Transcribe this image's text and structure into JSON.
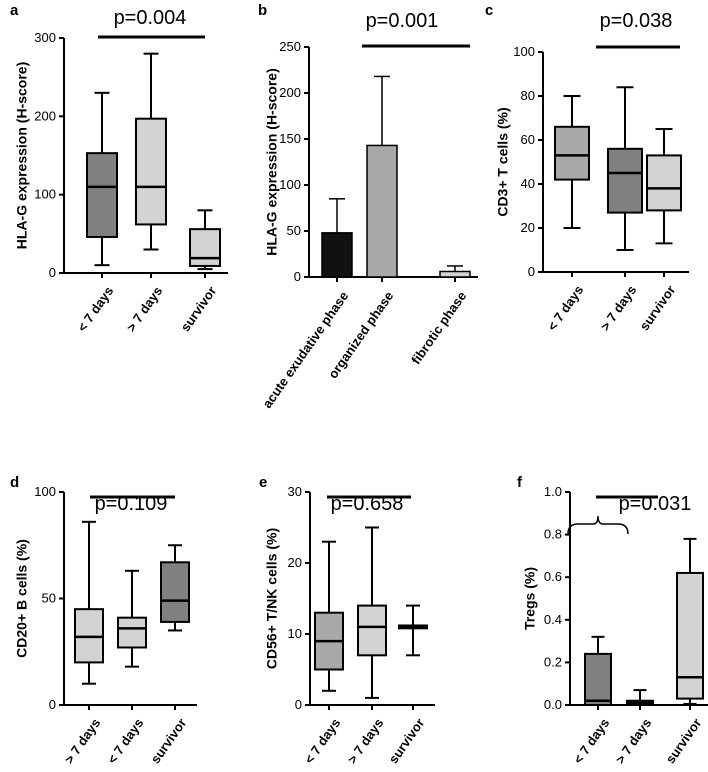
{
  "chart_data": [
    {
      "panel": "a",
      "type": "box",
      "pvalue": "p=0.004",
      "ylabel": "HLA-G expression (H-score)",
      "ylim": [
        0,
        300
      ],
      "yticks": [
        0,
        100,
        200,
        300
      ],
      "categories": [
        "< 7 days",
        "> 7 days",
        "survivor"
      ],
      "fills": [
        "#808080",
        "#d3d3d3",
        "#d3d3d3"
      ],
      "boxes": [
        {
          "min": 10,
          "q1": 46,
          "median": 110,
          "q3": 153,
          "max": 230
        },
        {
          "min": 30,
          "q1": 62,
          "median": 110,
          "q3": 197,
          "max": 280
        },
        {
          "min": 5,
          "q1": 9,
          "median": 19,
          "q3": 56,
          "max": 80
        }
      ],
      "bracket": [
        0,
        2
      ]
    },
    {
      "panel": "b",
      "type": "bar",
      "pvalue": "p=0.001",
      "ylabel": "HLA-G expression (H-score)",
      "ylim": [
        0,
        250
      ],
      "yticks": [
        0,
        50,
        100,
        150,
        200,
        250
      ],
      "categories": [
        "acute exudative phase",
        "organized phase",
        "fibrotic phase"
      ],
      "fills": [
        "#111111",
        "#a9a9a9",
        "#d3d3d3"
      ],
      "values": [
        48,
        143,
        6
      ],
      "errors": [
        85,
        218,
        12
      ],
      "bracket": [
        0,
        2
      ]
    },
    {
      "panel": "c",
      "type": "box",
      "pvalue": "p=0.038",
      "ylabel": "CD3+ T cells (%)",
      "ylim": [
        0,
        100
      ],
      "yticks": [
        0,
        20,
        40,
        60,
        80,
        100
      ],
      "categories": [
        "< 7 days",
        "> 7 days",
        "survivor"
      ],
      "fills": [
        "#a9a9a9",
        "#808080",
        "#d3d3d3"
      ],
      "boxes": [
        {
          "min": 20,
          "q1": 42,
          "median": 53,
          "q3": 66,
          "max": 80
        },
        {
          "min": 10,
          "q1": 27,
          "median": 45,
          "q3": 56,
          "max": 84
        },
        {
          "min": 13,
          "q1": 28,
          "median": 38,
          "q3": 53,
          "max": 65
        }
      ],
      "bracket": [
        1,
        2
      ]
    },
    {
      "panel": "d",
      "type": "box",
      "pvalue": "p=0.109",
      "ylabel": "CD20+ B cells (%)",
      "ylim": [
        0,
        100
      ],
      "yticks": [
        0,
        50,
        100
      ],
      "categories": [
        "> 7 days",
        "< 7 days",
        "survivor"
      ],
      "fills": [
        "#d3d3d3",
        "#d3d3d3",
        "#808080"
      ],
      "boxes": [
        {
          "min": 10,
          "q1": 20,
          "median": 32,
          "q3": 45,
          "max": 86
        },
        {
          "min": 18,
          "q1": 27,
          "median": 36,
          "q3": 41,
          "max": 63
        },
        {
          "min": 35,
          "q1": 39,
          "median": 49,
          "q3": 67,
          "max": 75
        }
      ],
      "bracket": [
        0,
        2
      ]
    },
    {
      "panel": "e",
      "type": "box",
      "pvalue": "p=0.658",
      "ylabel": "CD56+ T/NK cells (%)",
      "ylim": [
        0,
        30
      ],
      "yticks": [
        0,
        10,
        20,
        30
      ],
      "categories": [
        "< 7 days",
        "> 7 days",
        "survivor"
      ],
      "fills": [
        "#a9a9a9",
        "#d3d3d3",
        "#d3d3d3"
      ],
      "boxes": [
        {
          "min": 2,
          "q1": 5,
          "median": 9,
          "q3": 13,
          "max": 23
        },
        {
          "min": 1,
          "q1": 7,
          "median": 11,
          "q3": 14,
          "max": 25
        },
        {
          "min": 7,
          "q1": 10.8,
          "median": 11,
          "q3": 11.2,
          "max": 14
        }
      ],
      "bracket": [
        0,
        2
      ]
    },
    {
      "panel": "f",
      "type": "box",
      "pvalue": "p=0.031",
      "ylabel": "Tregs (%)",
      "ylim": [
        0,
        1.0
      ],
      "yticks": [
        0.0,
        0.2,
        0.4,
        0.6,
        0.8,
        1.0
      ],
      "ytick_labels": [
        "0.0",
        "0.2",
        "0.4",
        "0.6",
        "0.8",
        "1.0"
      ],
      "categories": [
        "< 7 days",
        "> 7 days",
        "survivor"
      ],
      "fills": [
        "#808080",
        "#808080",
        "#d3d3d3"
      ],
      "boxes": [
        {
          "min": 0,
          "q1": 0.0,
          "median": 0.02,
          "q3": 0.24,
          "max": 0.32
        },
        {
          "min": 0,
          "q1": 0.0,
          "median": 0.01,
          "q3": 0.02,
          "max": 0.07
        },
        {
          "min": 0.005,
          "q1": 0.03,
          "median": 0.13,
          "q3": 0.62,
          "max": 0.78
        }
      ],
      "bracket": [
        1,
        2
      ],
      "group_brace": [
        0,
        1
      ]
    }
  ]
}
